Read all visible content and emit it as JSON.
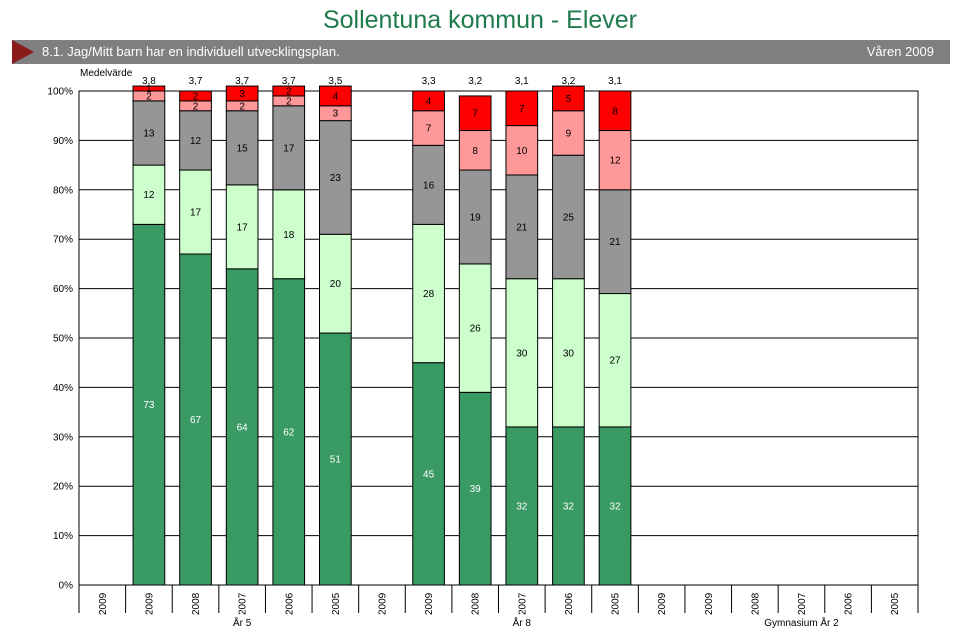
{
  "header": {
    "title": "Sollentuna kommun - Elever",
    "question": "8.1.  Jag/Mitt barn har en individuell utvecklingsplan.",
    "period": "Våren 2009"
  },
  "chart_data": {
    "type": "bar",
    "stacked": true,
    "mean_header": "Medelvärde",
    "ylim": [
      0,
      100
    ],
    "yticks": [
      "0%",
      "10%",
      "20%",
      "30%",
      "40%",
      "50%",
      "60%",
      "70%",
      "80%",
      "90%",
      "100%"
    ],
    "grid": true,
    "groups": [
      {
        "name": "År 5",
        "bars": [
          {
            "year": "2009",
            "mean": "",
            "segments": []
          },
          {
            "year": "2009",
            "mean": "3,8",
            "segments": [
              73,
              12,
              13,
              2,
              1
            ]
          },
          {
            "year": "2008",
            "mean": "3,7",
            "segments": [
              67,
              17,
              12,
              2,
              2
            ]
          },
          {
            "year": "2007",
            "mean": "3,7",
            "segments": [
              64,
              17,
              15,
              2,
              3
            ]
          },
          {
            "year": "2006",
            "mean": "3,7",
            "segments": [
              62,
              18,
              17,
              2,
              2
            ]
          },
          {
            "year": "2005",
            "mean": "3,5",
            "segments": [
              51,
              20,
              23,
              3,
              4
            ]
          }
        ]
      },
      {
        "name": "År 8",
        "bars": [
          {
            "year": "2009",
            "mean": "",
            "segments": []
          },
          {
            "year": "2009",
            "mean": "3,3",
            "segments": [
              45,
              28,
              16,
              7,
              4
            ]
          },
          {
            "year": "2008",
            "mean": "3,2",
            "segments": [
              39,
              26,
              19,
              8,
              7
            ]
          },
          {
            "year": "2007",
            "mean": "3,1",
            "segments": [
              32,
              30,
              21,
              10,
              7
            ]
          },
          {
            "year": "2006",
            "mean": "3,2",
            "segments": [
              32,
              30,
              25,
              9,
              5
            ]
          },
          {
            "year": "2005",
            "mean": "3,1",
            "segments": [
              32,
              27,
              21,
              12,
              8
            ]
          }
        ]
      },
      {
        "name": "Gymnasium År 2",
        "bars": [
          {
            "year": "2009",
            "mean": "",
            "segments": []
          },
          {
            "year": "2009",
            "mean": "",
            "segments": []
          },
          {
            "year": "2008",
            "mean": "",
            "segments": []
          },
          {
            "year": "2007",
            "mean": "",
            "segments": []
          },
          {
            "year": "2006",
            "mean": "",
            "segments": []
          },
          {
            "year": "2005",
            "mean": "",
            "segments": []
          }
        ]
      }
    ],
    "segment_colors": [
      "#3a9a63",
      "#ccffcc",
      "#969696",
      "#ff9999",
      "#ff0000"
    ],
    "segment_text_colors": [
      "#ffffff",
      "#000000",
      "#000000",
      "#000000",
      "#000000"
    ]
  }
}
